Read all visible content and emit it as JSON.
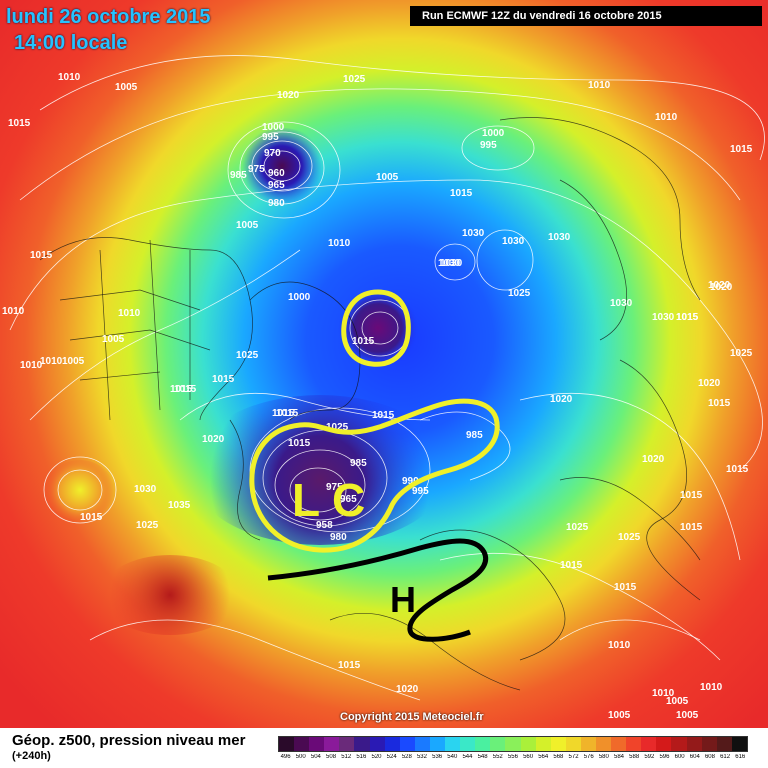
{
  "header": {
    "date": "lundi 26 octobre 2015",
    "time": "14:00 locale",
    "run": "Run ECMWF 12Z du vendredi 16 octobre 2015"
  },
  "copyright": "Copyright 2015 Meteociel.fr",
  "footer": {
    "title": "Géop. z500, pression niveau mer",
    "step": "(+240h)"
  },
  "scale": {
    "ticks": [
      "496",
      "500",
      "504",
      "508",
      "512",
      "516",
      "520",
      "524",
      "528",
      "532",
      "536",
      "540",
      "544",
      "548",
      "552",
      "556",
      "560",
      "564",
      "568",
      "572",
      "576",
      "580",
      "584",
      "588",
      "592",
      "596",
      "600",
      "604",
      "608",
      "612",
      "616"
    ],
    "colors": [
      "#2a0a2a",
      "#4a0a52",
      "#6a0a78",
      "#8a1a9a",
      "#6a2a7a",
      "#3a1a8a",
      "#2a1ab4",
      "#1a2ade",
      "#1a4aff",
      "#1a7aff",
      "#1aa8ff",
      "#2ad4f0",
      "#3ae8c8",
      "#4af0a0",
      "#6af07a",
      "#8af05a",
      "#aaf03a",
      "#d4f02a",
      "#f0f02a",
      "#f0d82a",
      "#f0b42a",
      "#f0902a",
      "#f06a2a",
      "#f0442a",
      "#e82a2a",
      "#d41a1a",
      "#b41a1a",
      "#941a1a",
      "#741a1a",
      "#541a1a",
      "#101010"
    ]
  },
  "map": {
    "annotations": [
      {
        "letter": "L",
        "color": "#f0f02a"
      },
      {
        "letter": "C",
        "color": "#f0f02a"
      },
      {
        "letter": "H",
        "color": "#000000"
      }
    ],
    "isobar_labels": [
      {
        "text": "1010"
      },
      {
        "text": "1005"
      },
      {
        "text": "1025"
      },
      {
        "text": "1020"
      },
      {
        "text": "1010"
      },
      {
        "text": "1010"
      },
      {
        "text": "1015"
      },
      {
        "text": "1000"
      },
      {
        "text": "995"
      },
      {
        "text": "970"
      },
      {
        "text": "985"
      },
      {
        "text": "975"
      },
      {
        "text": "960"
      },
      {
        "text": "965"
      },
      {
        "text": "980"
      },
      {
        "text": "1005"
      },
      {
        "text": "1005"
      },
      {
        "text": "1000"
      },
      {
        "text": "995"
      },
      {
        "text": "1015"
      },
      {
        "text": "1010"
      },
      {
        "text": "1015"
      },
      {
        "text": "1030"
      },
      {
        "text": "1030"
      },
      {
        "text": "1030"
      },
      {
        "text": "1030"
      },
      {
        "text": "1025"
      },
      {
        "text": "1030"
      },
      {
        "text": "1030"
      },
      {
        "text": "1015"
      },
      {
        "text": "1020"
      },
      {
        "text": "1025"
      },
      {
        "text": "1020"
      },
      {
        "text": "1015"
      },
      {
        "text": "1015"
      },
      {
        "text": "1010"
      },
      {
        "text": "1025"
      },
      {
        "text": "1015"
      },
      {
        "text": "1020"
      },
      {
        "text": "1025"
      },
      {
        "text": "1015"
      },
      {
        "text": "1010"
      },
      {
        "text": "1010"
      },
      {
        "text": "1005"
      },
      {
        "text": "1005"
      },
      {
        "text": "1015"
      },
      {
        "text": "1015"
      },
      {
        "text": "1015"
      },
      {
        "text": "1010"
      },
      {
        "text": "1010"
      },
      {
        "text": "1005"
      },
      {
        "text": "1005"
      },
      {
        "text": "1010"
      },
      {
        "text": "1005"
      },
      {
        "text": "1020"
      },
      {
        "text": "1015"
      },
      {
        "text": "1015"
      },
      {
        "text": "1025"
      },
      {
        "text": "1030"
      },
      {
        "text": "1035"
      },
      {
        "text": "1015"
      },
      {
        "text": "1015"
      },
      {
        "text": "1020"
      },
      {
        "text": "1025"
      },
      {
        "text": "1015"
      },
      {
        "text": "1015"
      },
      {
        "text": "1015"
      },
      {
        "text": "1025"
      },
      {
        "text": "1015"
      },
      {
        "text": "1020"
      },
      {
        "text": "985"
      },
      {
        "text": "975"
      },
      {
        "text": "965"
      },
      {
        "text": "958"
      },
      {
        "text": "980"
      },
      {
        "text": "990"
      },
      {
        "text": "995"
      },
      {
        "text": "985"
      },
      {
        "text": "1015"
      },
      {
        "text": "1010"
      },
      {
        "text": "1030"
      },
      {
        "text": "1020"
      },
      {
        "text": "1000"
      },
      {
        "text": "1015"
      },
      {
        "text": "1015"
      }
    ]
  }
}
